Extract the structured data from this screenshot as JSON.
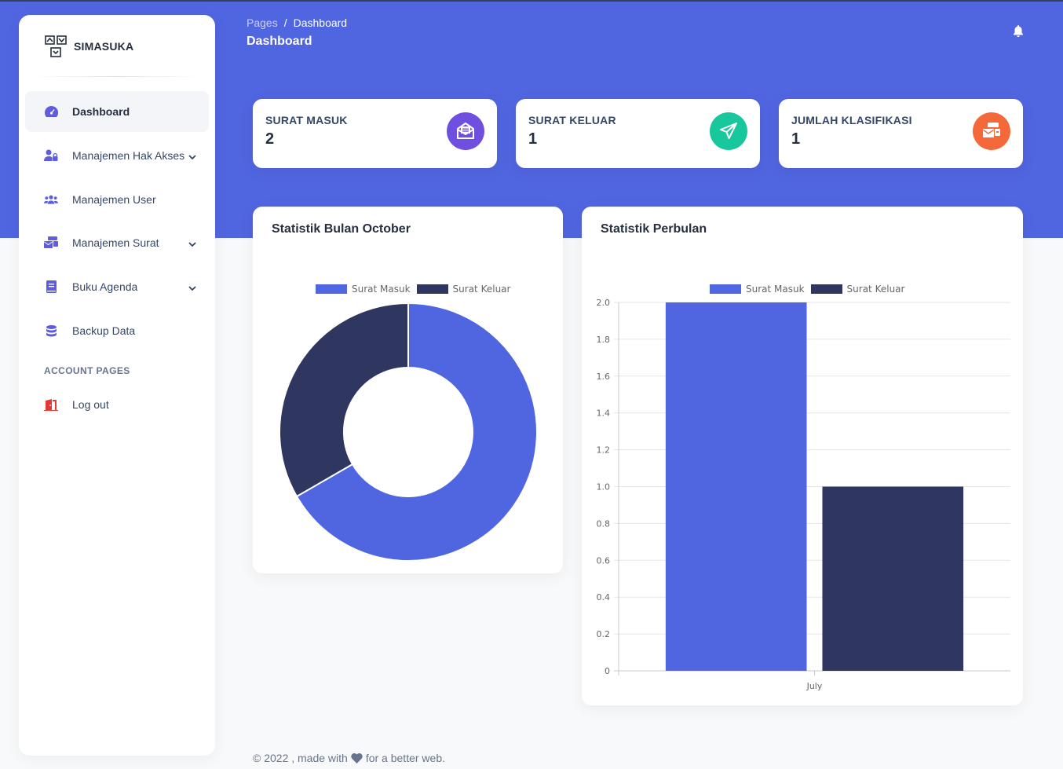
{
  "app": {
    "name": "SIMASUKA"
  },
  "sidebar": {
    "items": [
      {
        "label": "Dashboard",
        "icon": "speedometer-icon",
        "active": true
      },
      {
        "label": "Manajemen Hak Akses",
        "icon": "user-lock-icon",
        "has_submenu": true
      },
      {
        "label": "Manajemen User",
        "icon": "users-icon"
      },
      {
        "label": "Manajemen Surat",
        "icon": "mail-bulk-icon",
        "has_submenu": true
      },
      {
        "label": "Buku Agenda",
        "icon": "book-icon",
        "has_submenu": true
      },
      {
        "label": "Backup Data",
        "icon": "database-icon"
      }
    ],
    "section_title": "ACCOUNT PAGES",
    "account_items": [
      {
        "label": "Log out",
        "icon": "door-icon"
      }
    ]
  },
  "header": {
    "breadcrumb": [
      "Pages",
      "Dashboard"
    ],
    "separator": "/",
    "title": "Dashboard"
  },
  "stats": [
    {
      "label": "SURAT MASUK",
      "value": "2",
      "icon": "envelope-open-icon",
      "color": "#6f4fe0"
    },
    {
      "label": "SURAT KELUAR",
      "value": "1",
      "icon": "paper-plane-icon",
      "color": "#18c79b"
    },
    {
      "label": "JUMLAH KLASIFIKASI",
      "value": "1",
      "icon": "mail-bulk-icon",
      "color": "#f5683a"
    }
  ],
  "charts": {
    "donut_title": "Statistik Bulan October",
    "bar_title": "Statistik Perbulan"
  },
  "chart_data": [
    {
      "type": "pie",
      "title": "Statistik Bulan October",
      "categories": [
        "Surat Masuk",
        "Surat Keluar"
      ],
      "values": [
        2,
        1
      ],
      "colors": [
        "#5065e0",
        "#2f3760"
      ],
      "legend": "top"
    },
    {
      "type": "bar",
      "title": "Statistik Perbulan",
      "categories": [
        "July"
      ],
      "series": [
        {
          "name": "Surat Masuk",
          "values": [
            2
          ],
          "color": "#5065e0"
        },
        {
          "name": "Surat Keluar",
          "values": [
            1
          ],
          "color": "#2f3760"
        }
      ],
      "ylim": [
        0,
        2
      ],
      "yticks": [
        "2.0",
        "1.8",
        "1.6",
        "1.4",
        "1.2",
        "1.0",
        "0.8",
        "0.6",
        "0.4",
        "0.2",
        "0"
      ],
      "grid": true,
      "legend": "top"
    }
  ],
  "footer": {
    "prefix": "© 2022 , made with",
    "suffix": "for a better web."
  }
}
